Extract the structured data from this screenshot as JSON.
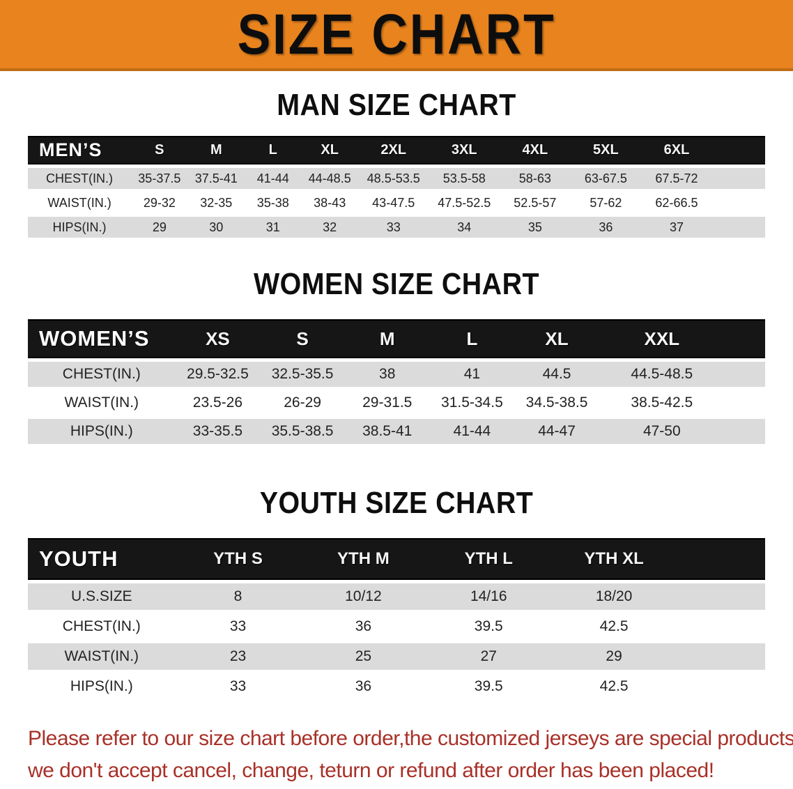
{
  "banner": {
    "title": "SIZE CHART"
  },
  "sections": [
    {
      "id": "men",
      "title": "MAN SIZE CHART",
      "table": {
        "corner_label": "MEN’S",
        "columns": [
          "S",
          "M",
          "L",
          "XL",
          "2XL",
          "3XL",
          "4XL",
          "5XL",
          "6XL"
        ],
        "rows": [
          {
            "label": "CHEST(IN.)",
            "values": [
              "35-37.5",
              "37.5-41",
              "41-44",
              "44-48.5",
              "48.5-53.5",
              "53.5-58",
              "58-63",
              "63-67.5",
              "67.5-72"
            ]
          },
          {
            "label": "WAIST(IN.)",
            "values": [
              "29-32",
              "32-35",
              "35-38",
              "38-43",
              "43-47.5",
              "47.5-52.5",
              "52.5-57",
              "57-62",
              "62-66.5"
            ]
          },
          {
            "label": "HIPS(IN.)",
            "values": [
              "29",
              "30",
              "31",
              "32",
              "33",
              "34",
              "35",
              "36",
              "37"
            ]
          }
        ]
      }
    },
    {
      "id": "women",
      "title": "WOMEN SIZE CHART",
      "table": {
        "corner_label": "WOMEN’S",
        "columns": [
          "XS",
          "S",
          "M",
          "L",
          "XL",
          "XXL"
        ],
        "rows": [
          {
            "label": "CHEST(IN.)",
            "values": [
              "29.5-32.5",
              "32.5-35.5",
              "38",
              "41",
              "44.5",
              "44.5-48.5"
            ]
          },
          {
            "label": "WAIST(IN.)",
            "values": [
              "23.5-26",
              "26-29",
              "29-31.5",
              "31.5-34.5",
              "34.5-38.5",
              "38.5-42.5"
            ]
          },
          {
            "label": "HIPS(IN.)",
            "values": [
              "33-35.5",
              "35.5-38.5",
              "38.5-41",
              "41-44",
              "44-47",
              "47-50"
            ]
          }
        ]
      }
    },
    {
      "id": "youth",
      "title": "YOUTH SIZE CHART",
      "table": {
        "corner_label": "YOUTH",
        "columns": [
          "YTH S",
          "YTH M",
          "YTH L",
          "YTH XL"
        ],
        "rows": [
          {
            "label": "U.S.SIZE",
            "values": [
              "8",
              "10/12",
              "14/16",
              "18/20"
            ]
          },
          {
            "label": "CHEST(IN.)",
            "values": [
              "33",
              "36",
              "39.5",
              "42.5"
            ]
          },
          {
            "label": "WAIST(IN.)",
            "values": [
              "23",
              "25",
              "27",
              "29"
            ]
          },
          {
            "label": "HIPS(IN.)",
            "values": [
              "33",
              "36",
              "39.5",
              "42.5"
            ]
          }
        ]
      }
    }
  ],
  "disclaimer": {
    "lines": [
      "Please refer to our size chart before order,the customized jerseys are special products,",
      "we don't accept cancel, change, teturn or refund after order has been placed!"
    ]
  },
  "colors": {
    "banner_orange": "#E8831E",
    "header_bar_black": "#161616",
    "row_gray": "#DBDBDB",
    "disclaimer_red": "#A93028"
  }
}
